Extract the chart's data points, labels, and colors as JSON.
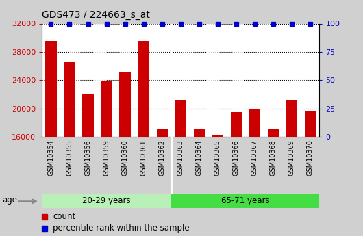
{
  "title": "GDS473 / 224663_s_at",
  "samples": [
    "GSM10354",
    "GSM10355",
    "GSM10356",
    "GSM10359",
    "GSM10360",
    "GSM10361",
    "GSM10362",
    "GSM10363",
    "GSM10364",
    "GSM10365",
    "GSM10366",
    "GSM10367",
    "GSM10368",
    "GSM10369",
    "GSM10370"
  ],
  "counts": [
    29500,
    26500,
    22000,
    23800,
    25200,
    29500,
    17200,
    21200,
    17200,
    16300,
    19500,
    20000,
    17100,
    21200,
    19700
  ],
  "percentile_ranks": [
    100,
    100,
    100,
    100,
    100,
    100,
    100,
    100,
    100,
    100,
    100,
    100,
    100,
    100,
    100
  ],
  "group1_label": "20-29 years",
  "group2_label": "65-71 years",
  "group1_count": 7,
  "group2_count": 8,
  "age_label": "age",
  "ymin": 16000,
  "ymax": 32000,
  "ylim_left": [
    16000,
    32000
  ],
  "ylim_right": [
    0,
    100
  ],
  "yticks_left": [
    16000,
    20000,
    24000,
    28000,
    32000
  ],
  "yticks_right": [
    0,
    25,
    50,
    75,
    100
  ],
  "bar_color": "#cc0000",
  "percentile_color": "#0000cc",
  "group1_bg": "#b8f0b8",
  "group2_bg": "#44dd44",
  "tick_color_left": "#cc0000",
  "tick_color_right": "#0000cc",
  "legend_count_label": "count",
  "legend_percentile_label": "percentile rank within the sample",
  "background_color": "#d0d0d0",
  "plot_bg_color": "#ffffff",
  "xticklabel_bg": "#c8c8c8"
}
